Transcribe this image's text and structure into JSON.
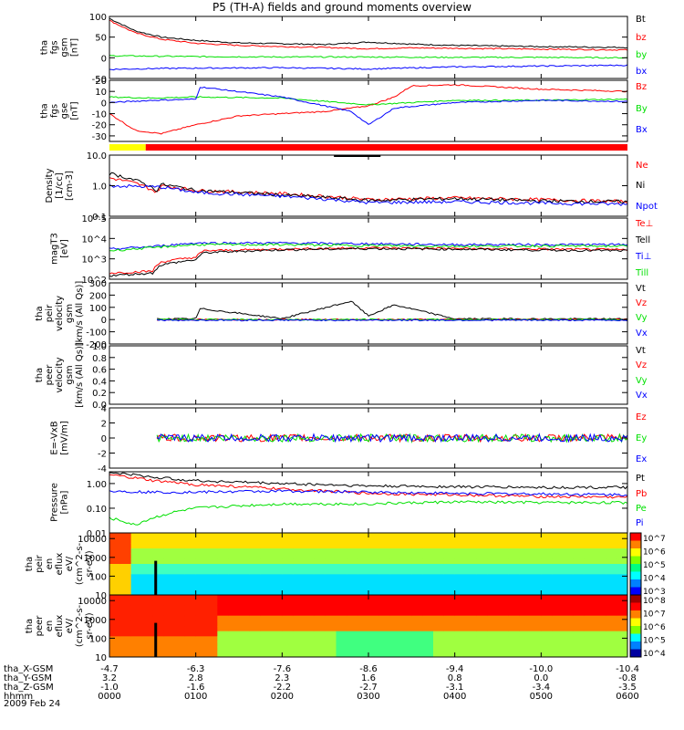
{
  "title": "P5 (TH-A) fields and ground moments overview",
  "date_label": "2009 Feb 24",
  "ephemeris": {
    "rows": [
      {
        "label": "tha_X-GSM",
        "values": [
          "-4.7",
          "-6.3",
          "-7.6",
          "-8.6",
          "-9.4",
          "-10.0",
          "-10.4"
        ]
      },
      {
        "label": "tha_Y-GSM",
        "values": [
          "3.2",
          "2.8",
          "2.3",
          "1.6",
          "0.8",
          "0.0",
          "-0.8"
        ]
      },
      {
        "label": "tha_Z-GSM",
        "values": [
          "-1.0",
          "-1.6",
          "-2.2",
          "-2.7",
          "-3.1",
          "-3.4",
          "-3.5"
        ]
      },
      {
        "label": "hhmm",
        "values": [
          "0000",
          "0100",
          "0200",
          "0300",
          "0400",
          "0500",
          "0600"
        ]
      }
    ]
  },
  "colors": {
    "black": "#000000",
    "red": "#ff0000",
    "green": "#00e000",
    "blue": "#0000ff",
    "yellow": "#ffff00"
  },
  "chart_data": [
    {
      "type": "line",
      "id": "fgs_gsm",
      "ylabel": [
        "tha",
        "fgs",
        "gsm",
        "[nT]"
      ],
      "ylim": [
        -50,
        100
      ],
      "yticks": [
        "100",
        "50",
        "0",
        "-50"
      ],
      "ytick_values": [
        100,
        50,
        0,
        -50
      ],
      "series": [
        {
          "name": "Bt",
          "color": "#000000",
          "x": [
            0,
            0.3,
            0.6,
            1,
            1.5,
            2,
            2.5,
            3,
            3.5,
            4,
            5,
            6
          ],
          "values": [
            95,
            65,
            50,
            42,
            36,
            34,
            32,
            38,
            33,
            30,
            27,
            25
          ]
        },
        {
          "name": "bz",
          "color": "#ff0000",
          "x": [
            0,
            0.3,
            0.6,
            1,
            1.5,
            2,
            2.5,
            3,
            3.5,
            4,
            5,
            6
          ],
          "values": [
            90,
            60,
            45,
            35,
            30,
            27,
            25,
            22,
            24,
            23,
            21,
            19
          ]
        },
        {
          "name": "by",
          "color": "#00e000",
          "x": [
            0,
            0.5,
            1,
            2,
            3,
            4,
            5,
            6
          ],
          "values": [
            5,
            4,
            3,
            2,
            2,
            1,
            1,
            0
          ]
        },
        {
          "name": "bx",
          "color": "#0000ff",
          "x": [
            0,
            0.5,
            1,
            2,
            3,
            4,
            5,
            6
          ],
          "values": [
            -28,
            -26,
            -25,
            -24,
            -27,
            -22,
            -20,
            -18
          ]
        }
      ]
    },
    {
      "type": "line",
      "id": "fgs_gse",
      "ylabel": [
        "tha",
        "fgs",
        "gse",
        "[nT]"
      ],
      "ylim": [
        -35,
        20
      ],
      "yticks": [
        "20",
        "10",
        "0",
        "-10",
        "-20",
        "-30"
      ],
      "ytick_values": [
        20,
        10,
        0,
        -10,
        -20,
        -30
      ],
      "series": [
        {
          "name": "Bz",
          "color": "#ff0000",
          "x": [
            0,
            0.3,
            0.6,
            1,
            1.5,
            2,
            2.5,
            3,
            3.3,
            3.5,
            4,
            5,
            6
          ],
          "values": [
            -10,
            -25,
            -28,
            -20,
            -12,
            -10,
            -8,
            -3,
            5,
            15,
            16,
            12,
            10
          ]
        },
        {
          "name": "By",
          "color": "#00e000",
          "x": [
            0,
            0.5,
            1,
            2,
            3,
            4,
            5,
            6
          ],
          "values": [
            5,
            4,
            5,
            4,
            -2,
            2,
            2,
            3
          ]
        },
        {
          "name": "Bx",
          "color": "#0000ff",
          "x": [
            0,
            0.5,
            1,
            1.05,
            2,
            2.8,
            3,
            3.3,
            4,
            5,
            6
          ],
          "values": [
            0,
            2,
            3,
            14,
            5,
            -8,
            -20,
            -5,
            0,
            2,
            1
          ]
        }
      ]
    },
    {
      "type": "line",
      "id": "density",
      "ylabel": [
        "Density",
        "[1/cc]",
        "[cm-3]"
      ],
      "log": true,
      "ylim": [
        0.1,
        10
      ],
      "yticks": [
        "10.0",
        "1.0",
        "0.1"
      ],
      "ytick_values": [
        10,
        1,
        0.1
      ],
      "series": [
        {
          "name": "Ne",
          "color": "#ff0000",
          "x": [
            0,
            0.3,
            0.55,
            0.6,
            1,
            2,
            3,
            4,
            5,
            6
          ],
          "values": [
            1.8,
            1.2,
            0.6,
            1.0,
            0.7,
            0.55,
            0.35,
            0.4,
            0.35,
            0.3
          ]
        },
        {
          "name": "Ni",
          "color": "#000000",
          "x": [
            0,
            0.3,
            0.55,
            0.6,
            1,
            2,
            3,
            4,
            5,
            6
          ],
          "values": [
            2.5,
            1.5,
            0.7,
            1.1,
            0.7,
            0.5,
            0.33,
            0.38,
            0.32,
            0.3
          ]
        },
        {
          "name": "Npot",
          "color": "#0000ff",
          "x": [
            0,
            0.6,
            1,
            2,
            3,
            4,
            5,
            6
          ],
          "values": [
            1.0,
            0.9,
            0.6,
            0.45,
            0.28,
            0.3,
            0.27,
            0.25
          ]
        }
      ]
    },
    {
      "type": "line",
      "id": "temperature",
      "ylabel": [
        "magT3",
        "[eV]"
      ],
      "log": true,
      "ylim": [
        100,
        100000
      ],
      "yticks": [
        "10^5",
        "10^4",
        "10^3",
        "10^2"
      ],
      "ytick_values": [
        100000,
        10000,
        1000,
        100
      ],
      "series": [
        {
          "name": "Te⊥",
          "color": "#ff0000",
          "x": [
            0,
            0.5,
            0.6,
            1,
            1.1,
            2,
            3,
            4,
            5,
            6
          ],
          "values": [
            200,
            250,
            700,
            1200,
            2500,
            3000,
            3500,
            3200,
            3000,
            2800
          ]
        },
        {
          "name": "Tell",
          "color": "#000000",
          "x": [
            0,
            0.5,
            0.6,
            1,
            1.1,
            2,
            3,
            4,
            5,
            6
          ],
          "values": [
            150,
            200,
            500,
            900,
            2000,
            2800,
            3200,
            3000,
            2700,
            2500
          ]
        },
        {
          "name": "Ti⊥",
          "color": "#0000ff",
          "x": [
            0,
            0.5,
            1,
            2,
            3,
            4,
            5,
            6
          ],
          "values": [
            3000,
            4000,
            6000,
            6000,
            5500,
            5000,
            5000,
            5000
          ]
        },
        {
          "name": "Till",
          "color": "#00e000",
          "x": [
            0,
            0.5,
            1,
            2,
            3,
            4,
            5,
            6
          ],
          "values": [
            2500,
            3500,
            5000,
            5000,
            4500,
            4200,
            4300,
            4200
          ]
        }
      ]
    },
    {
      "type": "line",
      "id": "peir_velocity",
      "ylabel": [
        "tha",
        "peir",
        "velocity",
        "gsm",
        "[km/s (All Qs)]"
      ],
      "ylim": [
        -200,
        300
      ],
      "yticks": [
        "300",
        "200",
        "100",
        "0",
        "-100",
        "-200"
      ],
      "ytick_values": [
        300,
        200,
        100,
        0,
        -100,
        -200
      ],
      "series": [
        {
          "name": "Vt",
          "color": "#000000",
          "x": [
            0.55,
            1,
            1.05,
            2,
            2.8,
            3,
            3.3,
            4,
            5,
            6
          ],
          "values": [
            5,
            5,
            90,
            8,
            150,
            30,
            120,
            6,
            5,
            5
          ]
        },
        {
          "name": "Vz",
          "color": "#ff0000",
          "x": [
            0.55,
            1,
            2,
            3,
            4,
            5,
            6
          ],
          "values": [
            0,
            0,
            0,
            0,
            0,
            0,
            0
          ]
        },
        {
          "name": "Vy",
          "color": "#00e000",
          "x": [
            0.55,
            1,
            2,
            3,
            4,
            5,
            6
          ],
          "values": [
            0,
            0,
            0,
            0,
            0,
            0,
            0
          ]
        },
        {
          "name": "Vx",
          "color": "#0000ff",
          "x": [
            0.55,
            1,
            2,
            3,
            4,
            5,
            6
          ],
          "values": [
            -5,
            -5,
            -5,
            -5,
            -5,
            -5,
            -5
          ]
        }
      ]
    },
    {
      "type": "line",
      "id": "peer_velocity",
      "ylabel": [
        "tha",
        "peer",
        "velocity",
        "gsm",
        "[km/s (All Qs)]"
      ],
      "ylim": [
        0,
        1
      ],
      "yticks": [
        "1.0",
        "0.8",
        "0.6",
        "0.4",
        "0.2",
        "0.0"
      ],
      "ytick_values": [
        1,
        0.8,
        0.6,
        0.4,
        0.2,
        0
      ],
      "series": [
        {
          "name": "Vt",
          "color": "#000000",
          "x": [],
          "values": []
        },
        {
          "name": "Vz",
          "color": "#ff0000",
          "x": [],
          "values": []
        },
        {
          "name": "Vy",
          "color": "#00e000",
          "x": [],
          "values": []
        },
        {
          "name": "Vx",
          "color": "#0000ff",
          "x": [],
          "values": []
        }
      ]
    },
    {
      "type": "line",
      "id": "efield",
      "ylabel": [
        "E=-VxB",
        "[mV/m]"
      ],
      "ylim": [
        -4,
        4
      ],
      "yticks": [
        "4",
        "2",
        "0",
        "-2",
        "-4"
      ],
      "ytick_values": [
        4,
        2,
        0,
        -2,
        -4
      ],
      "series": [
        {
          "name": "Ez",
          "color": "#ff0000",
          "x": [
            0.55,
            1,
            2,
            3,
            4,
            5,
            6
          ],
          "values": [
            0,
            0,
            0,
            0,
            0,
            0,
            0
          ]
        },
        {
          "name": "Ey",
          "color": "#00e000",
          "x": [
            0.55,
            1,
            2,
            3,
            4,
            5,
            6
          ],
          "values": [
            0,
            0,
            0,
            0,
            0,
            0,
            0
          ]
        },
        {
          "name": "Ex",
          "color": "#0000ff",
          "x": [
            0.55,
            1,
            2,
            3,
            4,
            5,
            6
          ],
          "values": [
            0,
            0,
            0,
            0,
            0,
            0,
            0
          ]
        }
      ]
    },
    {
      "type": "line",
      "id": "pressure",
      "ylabel": [
        "Pressure",
        "[nPa]"
      ],
      "log": true,
      "ylim": [
        0.01,
        3
      ],
      "yticks": [
        "1.00",
        "0.10",
        "0.01"
      ],
      "ytick_values": [
        1,
        0.1,
        0.01
      ],
      "series": [
        {
          "name": "Pt",
          "color": "#000000",
          "x": [
            0,
            0.5,
            1,
            2,
            3,
            4,
            5,
            6
          ],
          "values": [
            2.8,
            1.8,
            1.3,
            1.0,
            0.8,
            0.75,
            0.7,
            0.7
          ]
        },
        {
          "name": "Pb",
          "color": "#ff0000",
          "x": [
            0,
            0.5,
            1,
            2,
            3,
            4,
            5,
            6
          ],
          "values": [
            2.2,
            1.3,
            0.9,
            0.6,
            0.4,
            0.35,
            0.3,
            0.28
          ]
        },
        {
          "name": "Pe",
          "color": "#00e000",
          "x": [
            0,
            0.3,
            0.6,
            1,
            2,
            3,
            4,
            5,
            6
          ],
          "values": [
            0.04,
            0.02,
            0.05,
            0.1,
            0.15,
            0.15,
            0.18,
            0.17,
            0.17
          ]
        },
        {
          "name": "Pi",
          "color": "#0000ff",
          "x": [
            0,
            0.5,
            1,
            2,
            3,
            4,
            5,
            6
          ],
          "values": [
            0.5,
            0.45,
            0.45,
            0.5,
            0.45,
            0.4,
            0.38,
            0.35
          ]
        }
      ]
    },
    {
      "type": "heatmap",
      "id": "peir_efluc",
      "ylabel": [
        "tha",
        "peir",
        "en",
        "eflux",
        "eV/",
        "(cm^2-s-",
        "sr-eV)"
      ],
      "log": true,
      "ylim": [
        10,
        20000
      ],
      "yticks": [
        "10000",
        "1000",
        "100",
        "10"
      ],
      "ytick_values": [
        10000,
        1000,
        100,
        10
      ],
      "colorbar_ticks": [
        "10^7",
        "10^6",
        "10^5",
        "10^4",
        "10^3"
      ]
    },
    {
      "type": "heatmap",
      "id": "peer_efluc",
      "ylabel": [
        "tha",
        "peer",
        "en",
        "eflux",
        "eV/",
        "(cm^2-s-",
        "sr-eV)"
      ],
      "log": true,
      "ylim": [
        10,
        20000
      ],
      "yticks": [
        "10000",
        "1000",
        "100",
        "10"
      ],
      "ytick_values": [
        10000,
        1000,
        100,
        10
      ],
      "colorbar_ticks": [
        "10^8",
        "10^7",
        "10^6",
        "10^5",
        "10^4"
      ]
    }
  ]
}
